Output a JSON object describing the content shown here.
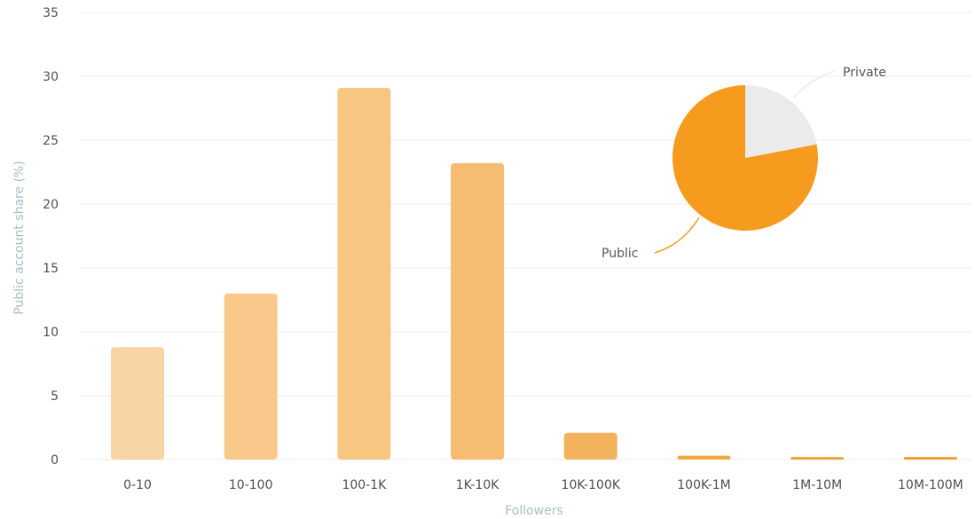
{
  "chart_data": [
    {
      "type": "bar",
      "categories": [
        "0-10",
        "10-100",
        "100-1K",
        "1K-10K",
        "10K-100K",
        "100K-1M",
        "1M-10M",
        "10M-100M"
      ],
      "values": [
        8.8,
        13.0,
        29.1,
        23.2,
        2.1,
        0.3,
        0.2,
        0.2
      ],
      "xlabel": "Followers",
      "ylabel": "Public account share (%)",
      "ylim": [
        0,
        35
      ],
      "yticks": [
        "0",
        "5",
        "10",
        "15",
        "20",
        "25",
        "30",
        "35"
      ],
      "grid": true,
      "colors": [
        "#f8d3a3",
        "#f9c98c",
        "#f7c681",
        "#f5bc72",
        "#f3b35c",
        "#f1a840",
        "#f0a23a",
        "#ef9d30"
      ]
    },
    {
      "type": "pie",
      "slices": [
        {
          "label": "Public",
          "value": 78,
          "color": "#f59c1e"
        },
        {
          "label": "Private",
          "value": 22,
          "color": "#ebebeb"
        }
      ]
    }
  ]
}
